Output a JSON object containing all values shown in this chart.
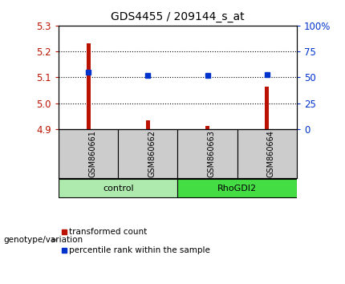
{
  "title": "GDS4455 / 209144_s_at",
  "samples": [
    "GSM860661",
    "GSM860662",
    "GSM860663",
    "GSM860664"
  ],
  "groups": [
    {
      "name": "control",
      "indices": [
        0,
        1
      ],
      "color": "#aeeaae"
    },
    {
      "name": "RhoGDI2",
      "indices": [
        2,
        3
      ],
      "color": "#44dd44"
    }
  ],
  "red_values": [
    5.23,
    4.935,
    4.912,
    5.065
  ],
  "blue_values": [
    55,
    52,
    52,
    53
  ],
  "ymin": 4.9,
  "ymax": 5.3,
  "yticks_left": [
    4.9,
    5.0,
    5.1,
    5.2,
    5.3
  ],
  "yticks_right": [
    0,
    25,
    50,
    75,
    100
  ],
  "red_color": "#bb1100",
  "blue_color": "#0033cc",
  "bar_width": 0.07,
  "legend_red": "transformed count",
  "legend_blue": "percentile rank within the sample",
  "genotype_label": "genotype/variation",
  "background_color": "#ffffff",
  "sample_bg": "#cccccc",
  "dotted_grid": [
    5.0,
    5.1,
    5.2
  ]
}
